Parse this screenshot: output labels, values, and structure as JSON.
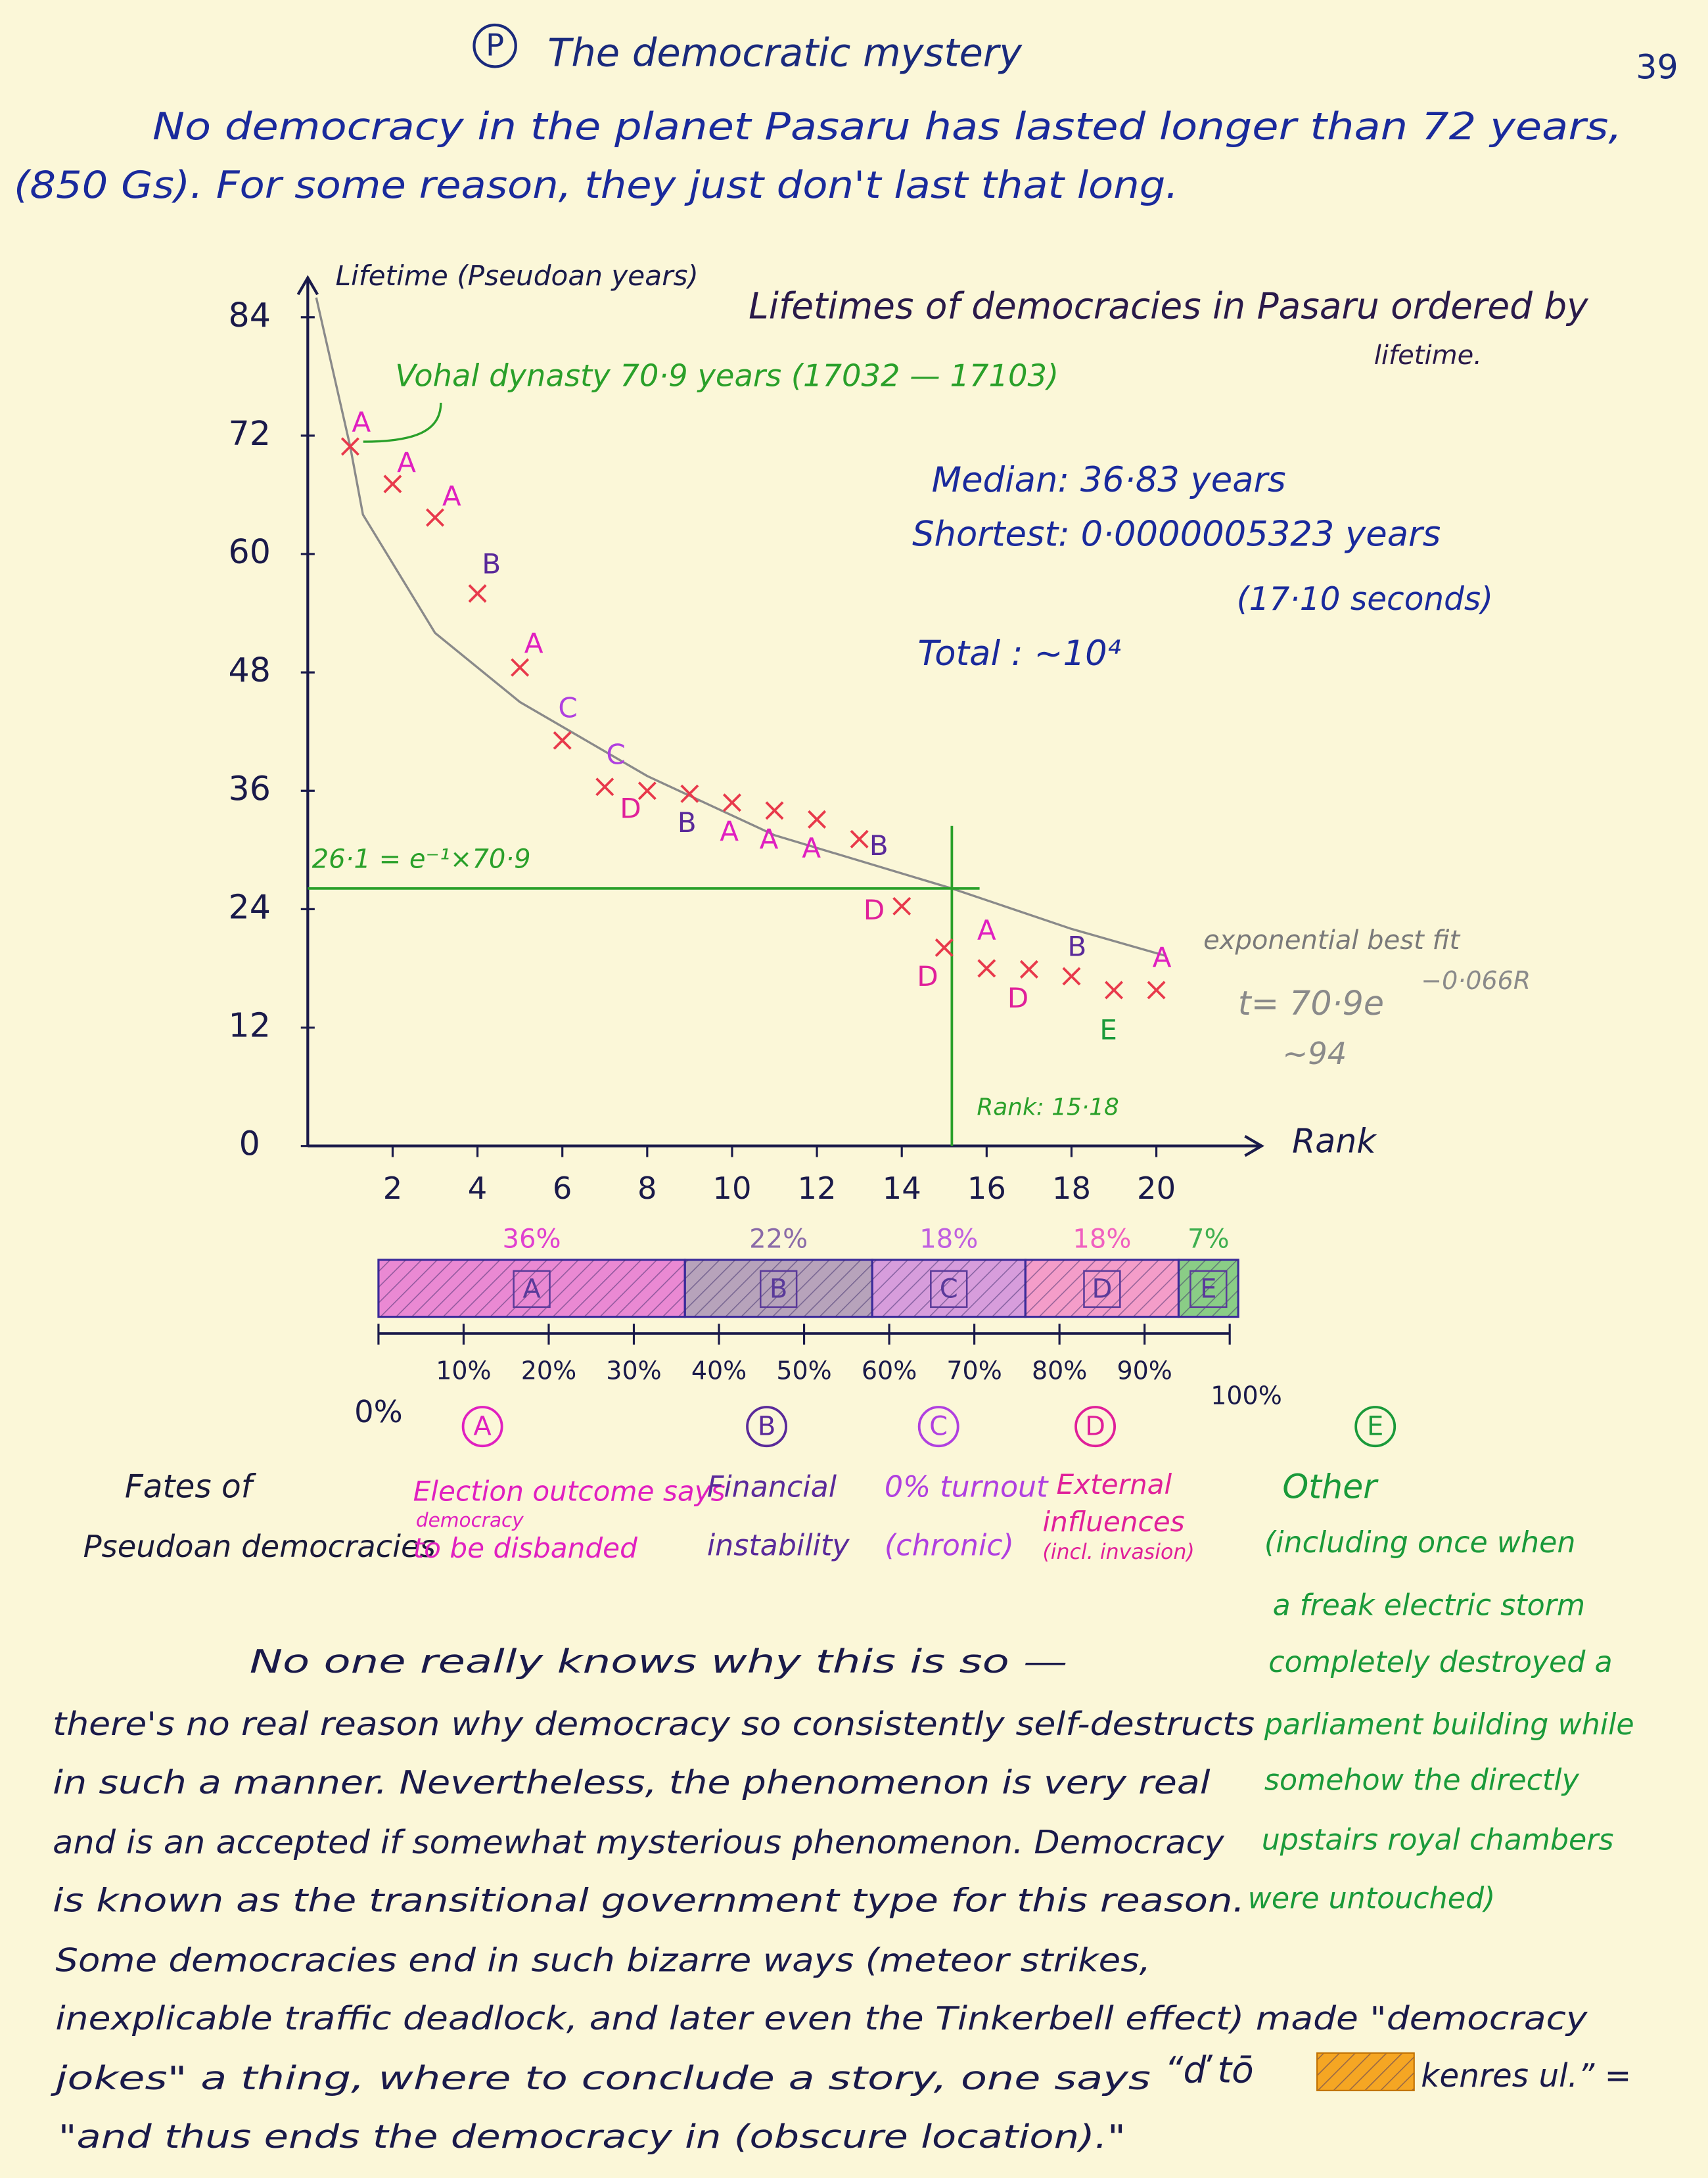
{
  "header": {
    "badge": "P",
    "title": "The democratic mystery",
    "page_number": "39"
  },
  "intro": [
    "No democracy in the planet Pasaru has lasted longer than 72 years,",
    "(850 Gs). For some reason, they just don't last that long."
  ],
  "chart_data": [
    {
      "type": "scatter",
      "title": [
        "Lifetimes of democracies in Pasaru ordered by",
        "lifetime."
      ],
      "y_label": "Lifetime (Pseudoan years)",
      "x_label": "Rank",
      "xlim": [
        0,
        21.5
      ],
      "ylim": [
        0,
        88
      ],
      "xticks": [
        2,
        4,
        6,
        8,
        10,
        12,
        14,
        16,
        18,
        20
      ],
      "yticks": [
        0,
        12,
        24,
        36,
        48,
        60,
        72,
        84
      ],
      "color": "#e8394b",
      "x": [
        1,
        2,
        3,
        4,
        5,
        6,
        7,
        8,
        9,
        10,
        11,
        12,
        13,
        14,
        15,
        16,
        17,
        18,
        19,
        20
      ],
      "values": [
        70.9,
        67.1,
        63.7,
        56.0,
        48.5,
        41.1,
        36.4,
        36.0,
        35.7,
        34.8,
        34.0,
        33.1,
        31.1,
        24.3,
        20.1,
        18.0,
        17.9,
        17.2,
        15.8,
        15.8
      ],
      "labels": [
        "A",
        "A",
        "A",
        "B",
        "A",
        "C",
        "C",
        "D",
        "B",
        "A",
        "A",
        "A",
        "B",
        "D",
        "D",
        "A",
        "D",
        "B",
        "E",
        "A"
      ],
      "label_colors": {
        "A": "#e020c0",
        "B": "#5a2a9a",
        "C": "#b040e0",
        "D": "#e0209a",
        "E": "#1a9a3a"
      },
      "fit": {
        "label": "exponential best fit",
        "equation": "t= 70·9e",
        "exponent": "−0·066R",
        "correction": "~94",
        "color": "#8a8a8a",
        "x": [
          0.2,
          1,
          1.3,
          3,
          5,
          8,
          11,
          15.18,
          18,
          20.2
        ],
        "values": [
          86,
          70.9,
          64,
          52,
          45,
          37.5,
          31.5,
          26.1,
          22,
          19.3
        ]
      },
      "reference": {
        "value": 26.1,
        "label": "26·1 = e⁻¹×70·9",
        "rank": 15.18,
        "rank_label": "Rank: 15·18",
        "color": "#2aa02a"
      },
      "annotations": {
        "vohal": "Vohal dynasty 70·9 years (17032 — 17103)",
        "median": "Median: 36·83 years",
        "shortest": "Shortest: 0·0000005323 years",
        "seconds": "(17·10 seconds)",
        "total": "Total : ~10⁴"
      }
    },
    {
      "type": "stacked-bar",
      "categories": [
        "A",
        "B",
        "C",
        "D",
        "E"
      ],
      "values": [
        36,
        22,
        18,
        18,
        7
      ],
      "value_labels": [
        "36%",
        "22%",
        "18%",
        "18%",
        "7%"
      ],
      "colors": [
        "#e040d0",
        "#8a6aa8",
        "#c060e0",
        "#f060c0",
        "#40b050"
      ],
      "xlim": [
        0,
        100
      ],
      "xticks": [
        {
          "value": 0,
          "label": "0%"
        },
        {
          "value": 10,
          "label": "10%"
        },
        {
          "value": 20,
          "label": "20%"
        },
        {
          "value": 30,
          "label": "30%"
        },
        {
          "value": 40,
          "label": "40%"
        },
        {
          "value": 50,
          "label": "50%"
        },
        {
          "value": 60,
          "label": "60%"
        },
        {
          "value": 70,
          "label": "70%"
        },
        {
          "value": 80,
          "label": "80%"
        },
        {
          "value": 90,
          "label": "90%"
        },
        {
          "value": 100,
          "label": "100%"
        }
      ]
    }
  ],
  "fates": {
    "title": [
      "Fates of",
      "Pseudoan democracies"
    ],
    "items": [
      {
        "key": "A",
        "lines": [
          "Election outcome says",
          "democracy",
          "to be disbanded"
        ]
      },
      {
        "key": "B",
        "lines": [
          "Financial",
          "instability"
        ]
      },
      {
        "key": "C",
        "lines": [
          "0% turnout",
          "(chronic)"
        ]
      },
      {
        "key": "D",
        "lines": [
          "External",
          "influences",
          "(incl. invasion)"
        ]
      },
      {
        "key": "E",
        "lines": [
          "Other",
          "(including once when",
          "a freak electric storm",
          "completely destroyed a",
          "parliament building while",
          "somehow the directly",
          "upstairs royal chambers",
          "were untouched)"
        ]
      }
    ]
  },
  "body": [
    "No one really knows why this is so —",
    "there's no real reason why democracy so consistently self-destructs",
    "in such a manner. Nevertheless, the phenomenon is very real",
    "and is an accepted if somewhat mysterious phenomenon. Democracy",
    "is known as the transitional government type for this reason.",
    "Some democracies end in such bizarre ways (meteor strikes,",
    "inexplicable traffic deadlock, and later even the Tinkerbell effect) made \"democracy",
    "jokes\" a thing, where to conclude a story, one says"
  ],
  "joke": {
    "start": "“ď tō",
    "end": "kenres ul.” =",
    "meaning": "\"and thus ends the democracy in (obscure location).\""
  }
}
